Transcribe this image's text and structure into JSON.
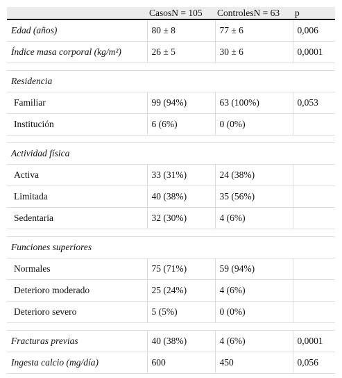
{
  "table": {
    "header": [
      "CasosN = 105",
      "ControlesN = 63",
      "p"
    ],
    "rows": [
      {
        "label": "Edad (años)",
        "values": [
          "80 ± 8",
          "77 ± 6",
          "0,006"
        ]
      },
      {
        "label": "Índice masa corporal (kg/m²)",
        "values": [
          "26 ± 5",
          "30 ± 6",
          "0,0001"
        ]
      },
      {
        "label": "Residencia"
      },
      {
        "label": "Familiar",
        "values": [
          "99 (94%)",
          "63 (100%)",
          "0,053"
        ]
      },
      {
        "label": "Institución",
        "values": [
          "6 (6%)",
          "0 (0%)"
        ]
      },
      {
        "label": "Actividad física"
      },
      {
        "label": "Activa",
        "values": [
          "33 (31%)",
          "24 (38%)"
        ]
      },
      {
        "label": "Limitada",
        "values": [
          "40 (38%)",
          "35 (56%)"
        ]
      },
      {
        "label": "Sedentaria",
        "values": [
          "32 (30%)",
          "4 (6%)"
        ]
      },
      {
        "label": "Funciones superiores"
      },
      {
        "label": "Normales",
        "values": [
          "75 (71%)",
          "59 (94%)"
        ]
      },
      {
        "label": "Deterioro moderado",
        "values": [
          "25 (24%)",
          "4 (6%)"
        ]
      },
      {
        "label": "Deterioro severo",
        "values": [
          "5 (5%)",
          "0 (0%)"
        ]
      },
      {
        "label": "Fracturas previas",
        "values": [
          "40 (38%)",
          "4 (6%)",
          "0,0001"
        ]
      },
      {
        "label": "Ingesta calcio (mg/día)",
        "values": [
          "600",
          "450",
          "0,056"
        ]
      }
    ]
  }
}
